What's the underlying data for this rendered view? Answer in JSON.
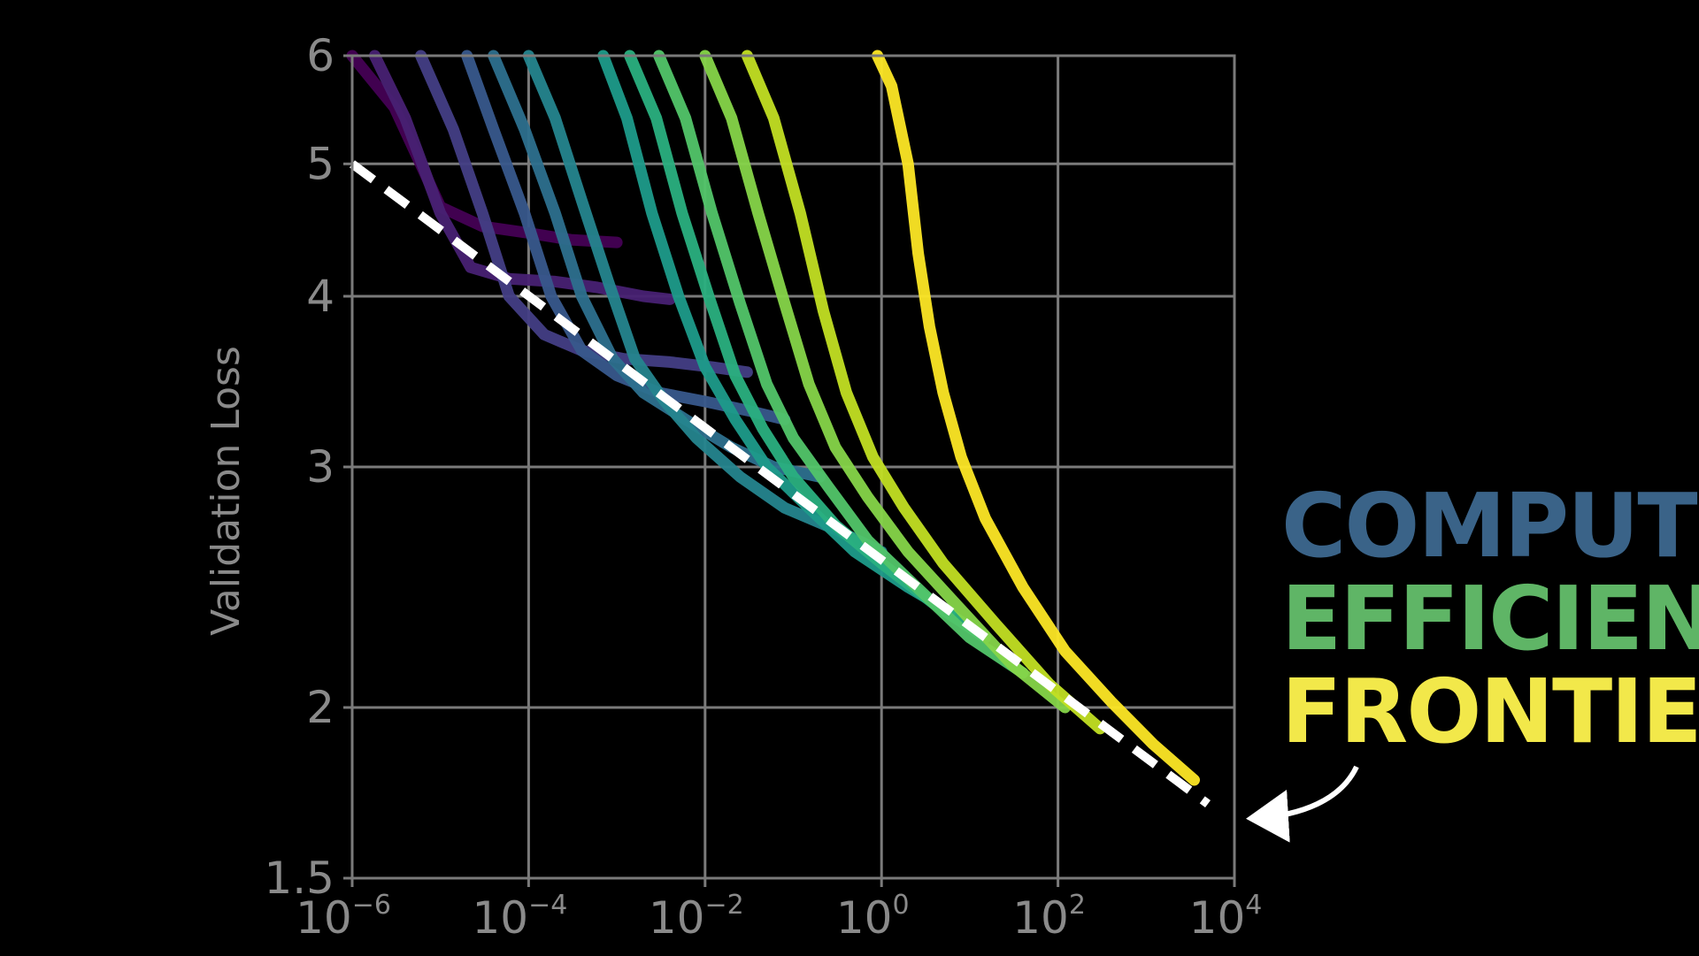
{
  "chart_data": {
    "type": "line",
    "title": "",
    "xlabel": "",
    "ylabel": "Validation Loss",
    "x_scale": "log",
    "y_scale": "log",
    "xlim": [
      1e-06,
      10000
    ],
    "ylim": [
      1.5,
      6
    ],
    "grid": true,
    "x_ticks": [
      {
        "base": "10",
        "exp": "−6",
        "value": 1e-06
      },
      {
        "base": "10",
        "exp": "−4",
        "value": 0.0001
      },
      {
        "base": "10",
        "exp": "−2",
        "value": 0.01
      },
      {
        "base": "10",
        "exp": "0",
        "value": 1
      },
      {
        "base": "10",
        "exp": "2",
        "value": 100
      },
      {
        "base": "10",
        "exp": "4",
        "value": 10000
      }
    ],
    "y_ticks": [
      {
        "label": "1.5",
        "value": 1.5
      },
      {
        "label": "2",
        "value": 2
      },
      {
        "label": "3",
        "value": 3
      },
      {
        "label": "4",
        "value": 4
      },
      {
        "label": "5",
        "value": 5
      },
      {
        "label": "6",
        "value": 6
      }
    ],
    "frontier": {
      "x": [
        1e-06,
        5000
      ],
      "y": [
        5.0,
        1.7
      ],
      "color": "#ffffff",
      "style": "dashed"
    },
    "series": [
      {
        "color": "#440154",
        "x": [
          1e-06,
          3e-06,
          1e-05,
          3e-05,
          0.0001,
          0.0003,
          0.001
        ],
        "y": [
          6.0,
          5.5,
          4.65,
          4.5,
          4.45,
          4.4,
          4.38
        ]
      },
      {
        "color": "#482173",
        "x": [
          1.8e-06,
          4e-06,
          1e-05,
          2.2e-05,
          6e-05,
          0.0002,
          0.0006,
          0.002,
          0.004
        ],
        "y": [
          6.0,
          5.4,
          4.6,
          4.2,
          4.12,
          4.1,
          4.06,
          4.0,
          3.98
        ]
      },
      {
        "color": "#433e85",
        "x": [
          6e-06,
          1.4e-05,
          3e-05,
          6e-05,
          0.00015,
          0.0004,
          0.0012,
          0.004,
          0.012,
          0.03
        ],
        "y": [
          6.0,
          5.3,
          4.6,
          4.0,
          3.75,
          3.65,
          3.6,
          3.58,
          3.55,
          3.52
        ]
      },
      {
        "color": "#38598c",
        "x": [
          2e-05,
          4e-05,
          9e-05,
          0.00018,
          0.0004,
          0.001,
          0.003,
          0.01,
          0.03,
          0.08
        ],
        "y": [
          6.0,
          5.3,
          4.6,
          4.0,
          3.65,
          3.5,
          3.4,
          3.35,
          3.3,
          3.25
        ]
      },
      {
        "color": "#2d708e",
        "x": [
          4e-05,
          9e-05,
          0.0002,
          0.0004,
          0.0009,
          0.002,
          0.006,
          0.02,
          0.06,
          0.2
        ],
        "y": [
          6.0,
          5.3,
          4.6,
          4.0,
          3.6,
          3.4,
          3.25,
          3.1,
          3.0,
          2.95
        ]
      },
      {
        "color": "#25858e",
        "x": [
          0.0001,
          0.0002,
          0.0004,
          0.0008,
          0.0016,
          0.0035,
          0.008,
          0.025,
          0.08,
          0.3,
          1.0
        ],
        "y": [
          6.0,
          5.4,
          4.7,
          4.1,
          3.6,
          3.35,
          3.15,
          2.95,
          2.8,
          2.7,
          2.6
        ]
      },
      {
        "color": "#1e9b8a",
        "x": [
          0.0007,
          0.0013,
          0.0025,
          0.005,
          0.01,
          0.022,
          0.05,
          0.15,
          0.5,
          2.0,
          6.0
        ],
        "y": [
          6.0,
          5.4,
          4.6,
          4.0,
          3.55,
          3.25,
          3.0,
          2.8,
          2.6,
          2.45,
          2.35
        ]
      },
      {
        "color": "#2ab07f",
        "x": [
          0.0014,
          0.0028,
          0.0055,
          0.011,
          0.022,
          0.045,
          0.1,
          0.3,
          1.0,
          4.0,
          15.0
        ],
        "y": [
          6.0,
          5.4,
          4.6,
          4.0,
          3.5,
          3.2,
          2.95,
          2.72,
          2.55,
          2.38,
          2.25
        ]
      },
      {
        "color": "#52c569",
        "x": [
          0.003,
          0.006,
          0.012,
          0.025,
          0.05,
          0.1,
          0.25,
          0.7,
          2.5,
          10.0,
          40.0
        ],
        "y": [
          6.0,
          5.4,
          4.6,
          3.95,
          3.45,
          3.15,
          2.9,
          2.65,
          2.45,
          2.25,
          2.12
        ]
      },
      {
        "color": "#86d549",
        "x": [
          0.01,
          0.02,
          0.04,
          0.08,
          0.15,
          0.3,
          0.7,
          2.0,
          7.0,
          30.0,
          120.0
        ],
        "y": [
          6.0,
          5.4,
          4.6,
          3.95,
          3.45,
          3.1,
          2.85,
          2.6,
          2.38,
          2.15,
          2.0
        ]
      },
      {
        "color": "#c2df23",
        "x": [
          0.03,
          0.06,
          0.12,
          0.22,
          0.4,
          0.8,
          1.8,
          5.0,
          20.0,
          80.0,
          300.0
        ],
        "y": [
          6.0,
          5.4,
          4.6,
          3.9,
          3.4,
          3.05,
          2.8,
          2.55,
          2.3,
          2.08,
          1.93
        ]
      },
      {
        "color": "#fde725",
        "x": [
          0.9,
          1.3,
          2.0,
          2.6,
          3.5,
          5.0,
          8.0,
          15.0,
          40.0,
          120.0,
          400.0,
          1200.0,
          3500.0
        ],
        "y": [
          6.0,
          5.7,
          5.0,
          4.3,
          3.8,
          3.4,
          3.05,
          2.75,
          2.45,
          2.2,
          2.02,
          1.88,
          1.77
        ]
      }
    ]
  },
  "annotation": {
    "line1": "COMPUTE",
    "line2": "EFFICIENT",
    "line3": "FRONTIER",
    "line1_color": "#3a6388",
    "line2_color": "#5fb566",
    "line3_color": "#f2e84a"
  }
}
